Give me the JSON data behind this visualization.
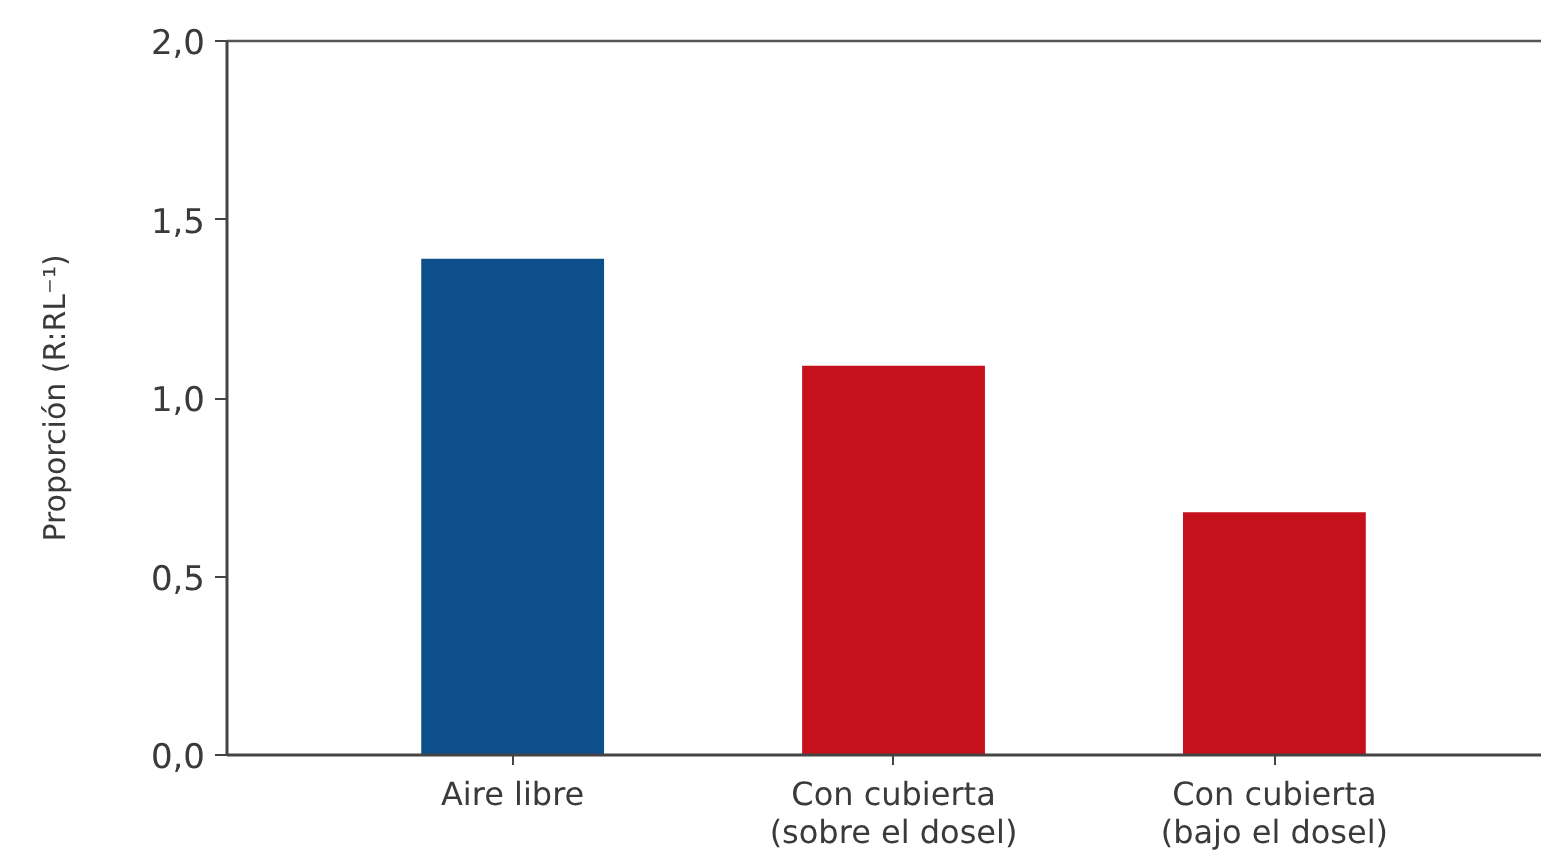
{
  "chart_data": {
    "type": "bar",
    "categories": [
      "Aire libre",
      "Con cubierta (sobre el dosel)",
      "Con cubierta (bajo el dosel)"
    ],
    "values": [
      1.39,
      1.09,
      0.68
    ],
    "colors": [
      "#0d4f8b",
      "#c4111b",
      "#c4111b"
    ],
    "ylabel": "Proporción (R:RL⁻¹)",
    "ylim": [
      0,
      2.0
    ],
    "yticks": [
      {
        "value": 0,
        "label": "0,0"
      },
      {
        "value": 0.5,
        "label": "0,5"
      },
      {
        "value": 1.0,
        "label": "1,0"
      },
      {
        "value": 1.5,
        "label": "1,5"
      },
      {
        "value": 2.0,
        "label": "2,0"
      }
    ]
  }
}
